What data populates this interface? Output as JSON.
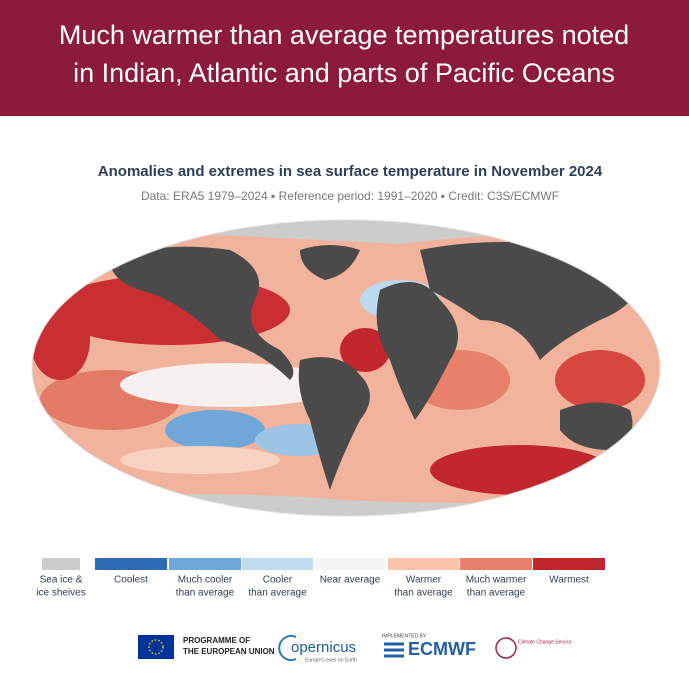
{
  "header": {
    "title_lines": [
      "Much warmer than average temperatures noted",
      "in Indian, Atlantic and parts of Pacific Oceans"
    ]
  },
  "map": {
    "title": "Anomalies and extremes in sea surface temperature in November 2024",
    "subtitle": "Data: ERA5 1979–2024 ▪ Reference period: 1991–2020 ▪ Credit: C3S/ECMWF"
  },
  "legend": [
    {
      "label_lines": [
        "Sea ice &",
        "ice sheives"
      ],
      "color": "#cccccc"
    },
    {
      "label_lines": [
        "Coolest"
      ],
      "color": "#2b6cb3"
    },
    {
      "label_lines": [
        "Much cooler",
        "than average"
      ],
      "color": "#6ea8d8"
    },
    {
      "label_lines": [
        "Cooler",
        "than average"
      ],
      "color": "#c1dcef"
    },
    {
      "label_lines": [
        "Near average"
      ],
      "color": "#f5f5f5"
    },
    {
      "label_lines": [
        "Warmer",
        "than average"
      ],
      "color": "#f8c4a9"
    },
    {
      "label_lines": [
        "Much warmer",
        "than average"
      ],
      "color": "#e8816b"
    },
    {
      "label_lines": [
        "Warmest"
      ],
      "color": "#c1272d"
    }
  ],
  "footer": {
    "eu_lines": [
      "PROGRAMME OF",
      "THE EUROPEAN UNION"
    ],
    "copernicus": "opernicus",
    "copernicus_tagline": "Europe's eyes on Earth",
    "implemented_by": "IMPLEMENTED BY",
    "ecmwf": "ECMWF",
    "c3s": "Climate Change Service"
  }
}
